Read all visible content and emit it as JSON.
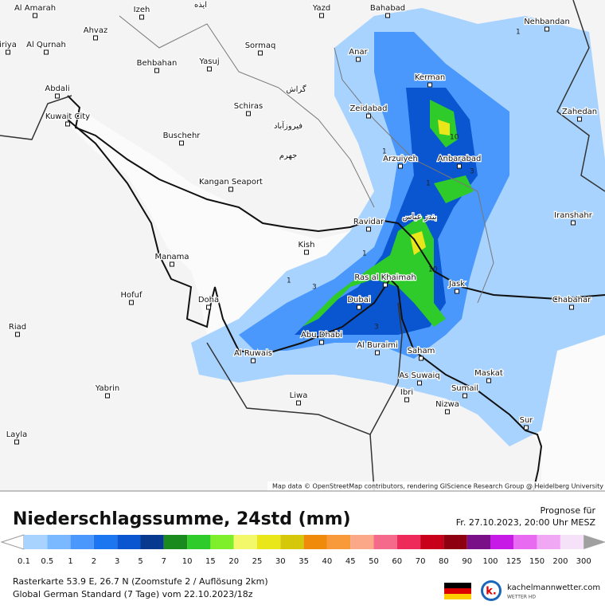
{
  "map": {
    "cities": [
      "Al Amarah",
      "Izeh",
      "Yazd",
      "Bahabad",
      "Ahvaz",
      "Nehbandan",
      "iriya",
      "Al Qurnah",
      "Sormaq",
      "Anar",
      "Behbahan",
      "Yasuj",
      "Kerman",
      "Abdali",
      "Zeidabad",
      "Schiras",
      "Zahedan",
      "Kuwait City",
      "Buschehr",
      "Arzuiyeh",
      "Anbarabad",
      "Kangan Seaport",
      "Iranshahr",
      "Ravidar",
      "Kish",
      "Manama",
      "Ras al Khaimah",
      "Jask",
      "Hofuf",
      "Dubai",
      "Doha",
      "Chabahar",
      "Riad",
      "Abu Dhabi",
      "Al Ruwais",
      "Al Buraimi",
      "Saham",
      "As Suwaiq",
      "Maskat",
      "Yabrin",
      "Ibri",
      "Sumail",
      "Liwa",
      "Nizwa",
      "Sur",
      "Layla"
    ],
    "local_names": [
      "ایذه",
      "گراش",
      "فیروزآباد",
      "جهرم",
      "بندر عباس"
    ],
    "contour_labels": [
      "1",
      "1",
      "3",
      "10",
      "1",
      "3",
      "1",
      "10",
      "3",
      "1"
    ],
    "attribution": "Map data © OpenStreetMap contributors, rendering GIScience Research Group @ Heidelberg University"
  },
  "legend": {
    "title": "Niederschlagssumme, 24std (mm)",
    "values": [
      0.1,
      0.5,
      1,
      2,
      3,
      5,
      7,
      10,
      15,
      20,
      25,
      30,
      35,
      40,
      45,
      50,
      60,
      70,
      80,
      90,
      100,
      125,
      150,
      200,
      300
    ],
    "colors": [
      "#a9d3ff",
      "#7ab8ff",
      "#4a98fb",
      "#1c76f0",
      "#0a55d0",
      "#073a8e",
      "#1a8a1e",
      "#2ecb2a",
      "#7eef2a",
      "#f3f86a",
      "#e9e61a",
      "#d5c80a",
      "#f08a0a",
      "#f89a3a",
      "#faa888",
      "#f56a8a",
      "#ee2a5a",
      "#c8001a",
      "#8e0010",
      "#7a1088",
      "#c81ae6",
      "#e86af0",
      "#f0a8f5",
      "#f6e2f8"
    ],
    "low_color": "#ffffff",
    "high_color": "#a0a0a0"
  },
  "forecast": {
    "label": "Prognose für",
    "time": "Fr. 27.10.2023, 20:00 Uhr MESZ"
  },
  "footer": {
    "line1": "Rasterkarte 53.9 E, 26.7 N (Zoomstufe 2 / Auflösung 2km)",
    "line2": "Global German Standard (7 Tage) vom 22.10.2023/18z"
  },
  "logo": {
    "name": "kachelmannwetter.com",
    "sub": "WETTER HD"
  }
}
